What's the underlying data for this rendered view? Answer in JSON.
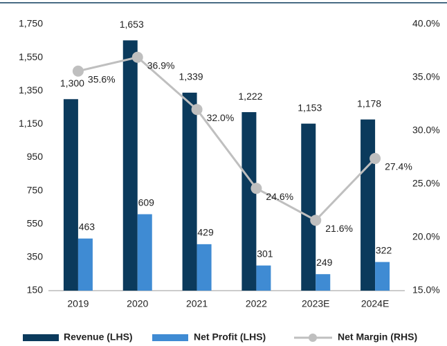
{
  "chart_data": {
    "type": "bar-line",
    "categories": [
      "2019",
      "2020",
      "2021",
      "2022",
      "2023E",
      "2024E"
    ],
    "series": [
      {
        "name": "Revenue (LHS)",
        "color": "#0b3a5c",
        "values": [
          1300,
          1653,
          1339,
          1222,
          1153,
          1178
        ],
        "value_labels": [
          "1,300",
          "1,653",
          "1,339",
          "1,222",
          "1,153",
          "1,178"
        ]
      },
      {
        "name": "Net Profit (LHS)",
        "color": "#3f8bd3",
        "values": [
          463,
          609,
          429,
          301,
          249,
          322
        ]
      },
      {
        "name": "Net Margin (RHS)",
        "color": "#bfbfbf",
        "axis": "y2",
        "values": [
          35.6,
          36.9,
          32.0,
          24.6,
          21.6,
          27.4
        ],
        "value_labels": [
          "35.6%",
          "36.9%",
          "32.0%",
          "24.6%",
          "21.6%",
          "27.4%"
        ]
      }
    ],
    "ylim": [
      150,
      1750
    ],
    "yticks": [
      150,
      350,
      550,
      750,
      950,
      {
        "value": 1150,
        "label": "1,150"
      },
      {
        "value": 1350,
        "label": "1,350"
      },
      {
        "value": 1550,
        "label": "1,550"
      },
      {
        "value": 1750,
        "label": "1,750"
      }
    ],
    "y2lim": [
      15,
      40
    ],
    "y2ticks": [
      {
        "value": 15,
        "label": "15.0%"
      },
      {
        "value": 20,
        "label": "20.0%"
      },
      {
        "value": 25,
        "label": "25.0%"
      },
      {
        "value": 30,
        "label": "30.0%"
      },
      {
        "value": 35,
        "label": "35.0%"
      },
      {
        "value": 40,
        "label": "40.0%"
      }
    ],
    "legend": "bottom"
  }
}
